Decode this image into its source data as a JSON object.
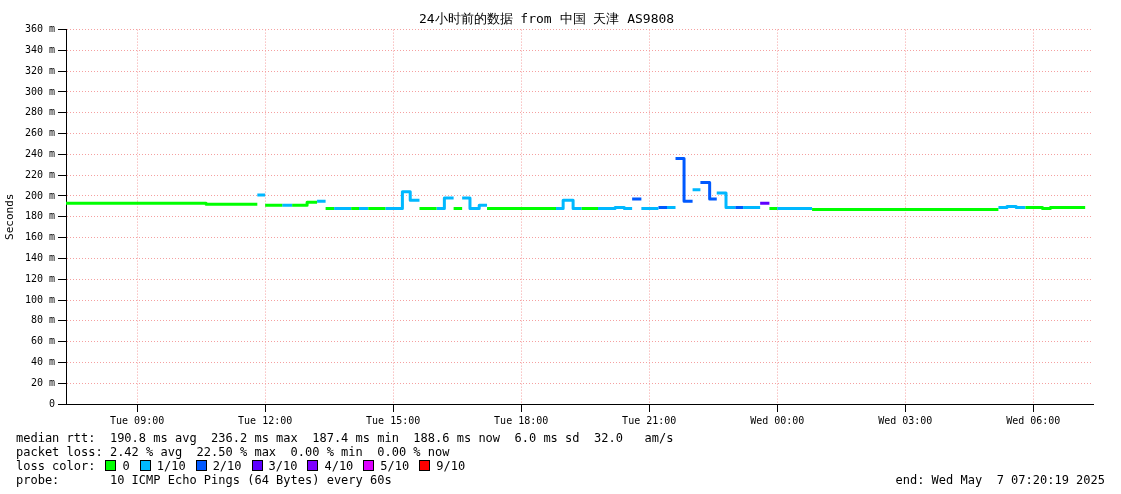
{
  "chart_data": {
    "type": "step",
    "title": "24小时前的数据 from 中国 天津 AS9808",
    "ylabel": "Seconds",
    "legend_title": "loss color:",
    "legend": "bottom",
    "grid": true,
    "xlim": [
      "2025-05-06T07:20",
      "2025-05-07T07:24"
    ],
    "xticks": [
      {
        "value": "2025-05-06T09:00",
        "label": "Tue 09:00"
      },
      {
        "value": "2025-05-06T12:00",
        "label": "Tue 12:00"
      },
      {
        "value": "2025-05-06T15:00",
        "label": "Tue 15:00"
      },
      {
        "value": "2025-05-06T18:00",
        "label": "Tue 18:00"
      },
      {
        "value": "2025-05-06T21:00",
        "label": "Tue 21:00"
      },
      {
        "value": "2025-05-07T00:00",
        "label": "Wed 00:00"
      },
      {
        "value": "2025-05-07T03:00",
        "label": "Wed 03:00"
      },
      {
        "value": "2025-05-07T06:00",
        "label": "Wed 06:00"
      }
    ],
    "ylim": [
      0,
      360
    ],
    "yticks": [
      {
        "value": 0,
        "label": "0"
      },
      {
        "value": 20,
        "label": "20 m"
      },
      {
        "value": 40,
        "label": "40 m"
      },
      {
        "value": 60,
        "label": "60 m"
      },
      {
        "value": 80,
        "label": "80 m"
      },
      {
        "value": 100,
        "label": "100 m"
      },
      {
        "value": 120,
        "label": "120 m"
      },
      {
        "value": 140,
        "label": "140 m"
      },
      {
        "value": 160,
        "label": "160 m"
      },
      {
        "value": 180,
        "label": "180 m"
      },
      {
        "value": 200,
        "label": "200 m"
      },
      {
        "value": 220,
        "label": "220 m"
      },
      {
        "value": 240,
        "label": "240 m"
      },
      {
        "value": 260,
        "label": "260 m"
      },
      {
        "value": 280,
        "label": "280 m"
      },
      {
        "value": 300,
        "label": "300 m"
      },
      {
        "value": 320,
        "label": "320 m"
      },
      {
        "value": 340,
        "label": "340 m"
      },
      {
        "value": 360,
        "label": "360 m"
      }
    ],
    "series": [
      {
        "name": "0",
        "color": "#00ff00",
        "x": [
          "2025-05-06T07:20",
          "2025-05-06T10:37",
          "2025-05-06T10:37",
          "2025-05-06T11:49",
          null,
          "2025-05-06T12:00",
          "2025-05-06T12:24",
          null,
          "2025-05-06T12:38",
          "2025-05-06T12:59",
          "2025-05-06T12:59",
          "2025-05-06T13:13",
          null,
          "2025-05-06T13:25",
          "2025-05-06T13:37",
          null,
          "2025-05-06T14:01",
          "2025-05-06T14:12",
          null,
          "2025-05-06T14:25",
          "2025-05-06T14:49",
          null,
          "2025-05-06T15:37",
          "2025-05-06T16:01",
          null,
          "2025-05-06T16:25",
          "2025-05-06T16:37",
          null,
          "2025-05-06T17:12",
          "2025-05-06T18:49",
          null,
          "2025-05-06T19:25",
          "2025-05-06T19:48",
          null,
          "2025-05-06T23:49",
          "2025-05-07T00:00",
          null,
          "2025-05-07T00:49",
          "2025-05-07T05:11",
          null,
          "2025-05-07T05:49",
          "2025-05-07T06:13",
          "2025-05-07T06:13",
          "2025-05-07T06:24",
          "2025-05-07T06:24",
          "2025-05-07T07:13"
        ],
        "values": [
          193,
          193,
          192,
          192,
          null,
          191,
          191,
          null,
          191,
          191,
          194,
          194,
          null,
          188,
          188,
          null,
          188,
          188,
          null,
          188,
          188,
          null,
          188,
          188,
          null,
          188,
          188,
          null,
          188,
          188,
          null,
          188,
          188,
          null,
          188,
          188,
          null,
          187,
          187,
          null,
          189,
          189,
          188,
          188,
          189,
          189
        ]
      },
      {
        "name": "1/10",
        "color": "#00b8ff",
        "x": [
          "2025-05-06T11:49",
          "2025-05-06T12:00",
          null,
          "2025-05-06T12:24",
          "2025-05-06T12:38",
          null,
          "2025-05-06T13:13",
          "2025-05-06T13:25",
          null,
          "2025-05-06T13:37",
          "2025-05-06T14:01",
          null,
          "2025-05-06T14:12",
          "2025-05-06T14:25",
          null,
          "2025-05-06T14:49",
          "2025-05-06T15:13",
          "2025-05-06T15:13",
          "2025-05-06T15:24",
          "2025-05-06T15:24",
          "2025-05-06T15:37",
          null,
          "2025-05-06T16:01",
          "2025-05-06T16:12",
          "2025-05-06T16:12",
          "2025-05-06T16:25",
          null,
          "2025-05-06T16:37",
          "2025-05-06T16:48",
          "2025-05-06T16:48",
          "2025-05-06T17:01",
          "2025-05-06T17:01",
          "2025-05-06T17:12",
          null,
          "2025-05-06T18:49",
          "2025-05-06T18:59",
          "2025-05-06T18:59",
          "2025-05-06T19:13",
          "2025-05-06T19:13",
          "2025-05-06T19:25",
          null,
          "2025-05-06T19:48",
          "2025-05-06T20:12",
          "2025-05-06T20:12",
          "2025-05-06T20:25",
          "2025-05-06T20:25",
          "2025-05-06T20:36",
          null,
          "2025-05-06T20:49",
          "2025-05-06T21:13",
          null,
          "2025-05-06T21:25",
          "2025-05-06T21:37",
          null,
          "2025-05-06T22:01",
          "2025-05-06T22:12",
          null,
          "2025-05-06T22:35",
          "2025-05-06T22:48",
          "2025-05-06T22:48",
          "2025-05-06T23:01",
          null,
          "2025-05-06T23:12",
          "2025-05-06T23:36",
          null,
          "2025-05-07T00:00",
          "2025-05-07T00:49",
          null,
          "2025-05-07T05:11",
          "2025-05-07T05:23",
          "2025-05-07T05:23",
          "2025-05-07T05:36",
          "2025-05-07T05:36",
          "2025-05-07T05:49"
        ],
        "values": [
          201,
          201,
          null,
          191,
          191,
          null,
          195,
          195,
          null,
          188,
          188,
          null,
          188,
          188,
          null,
          188,
          188,
          204,
          204,
          196,
          196,
          null,
          188,
          188,
          198,
          198,
          null,
          198,
          198,
          188,
          188,
          191,
          191,
          null,
          188,
          188,
          196,
          196,
          188,
          188,
          null,
          188,
          188,
          189,
          189,
          188,
          188,
          null,
          188,
          188,
          null,
          189,
          189,
          null,
          206,
          206,
          null,
          203,
          203,
          189,
          189,
          null,
          189,
          189,
          null,
          188,
          188,
          null,
          189,
          189,
          190,
          190,
          189,
          189
        ]
      },
      {
        "name": "2/10",
        "color": "#0059ff",
        "x": [
          "2025-05-06T20:36",
          "2025-05-06T20:49",
          null,
          "2025-05-06T21:13",
          "2025-05-06T21:25",
          null,
          "2025-05-06T21:37",
          "2025-05-06T21:49",
          "2025-05-06T21:49",
          "2025-05-06T22:01",
          null,
          "2025-05-06T22:12",
          "2025-05-06T22:25",
          "2025-05-06T22:25",
          "2025-05-06T22:35",
          null,
          "2025-05-06T23:01",
          "2025-05-06T23:12"
        ],
        "values": [
          197,
          197,
          null,
          189,
          189,
          null,
          236,
          236,
          195,
          195,
          null,
          213,
          213,
          197,
          197,
          null,
          189,
          189
        ]
      },
      {
        "name": "3/10",
        "color": "#5e00ff",
        "x": [
          "2025-05-06T23:36",
          "2025-05-06T23:49"
        ],
        "values": [
          193,
          193
        ]
      },
      {
        "name": "4/10",
        "color": "#7e00ff"
      },
      {
        "name": "5/10",
        "color": "#dd00ff"
      },
      {
        "name": "9/10",
        "color": "#ff0000"
      }
    ],
    "annotations": [
      "median rtt:  190.8 ms avg  236.2 ms max  187.4 ms min  188.6 ms now  6.0 ms sd  32.0   am/s",
      "packet loss: 2.42 % avg  22.50 % max  0.00 % min  0.00 % now",
      "probe:       10 ICMP Echo Pings (64 Bytes) every 60s",
      "end: Wed May  7 07:20:19 2025"
    ]
  }
}
